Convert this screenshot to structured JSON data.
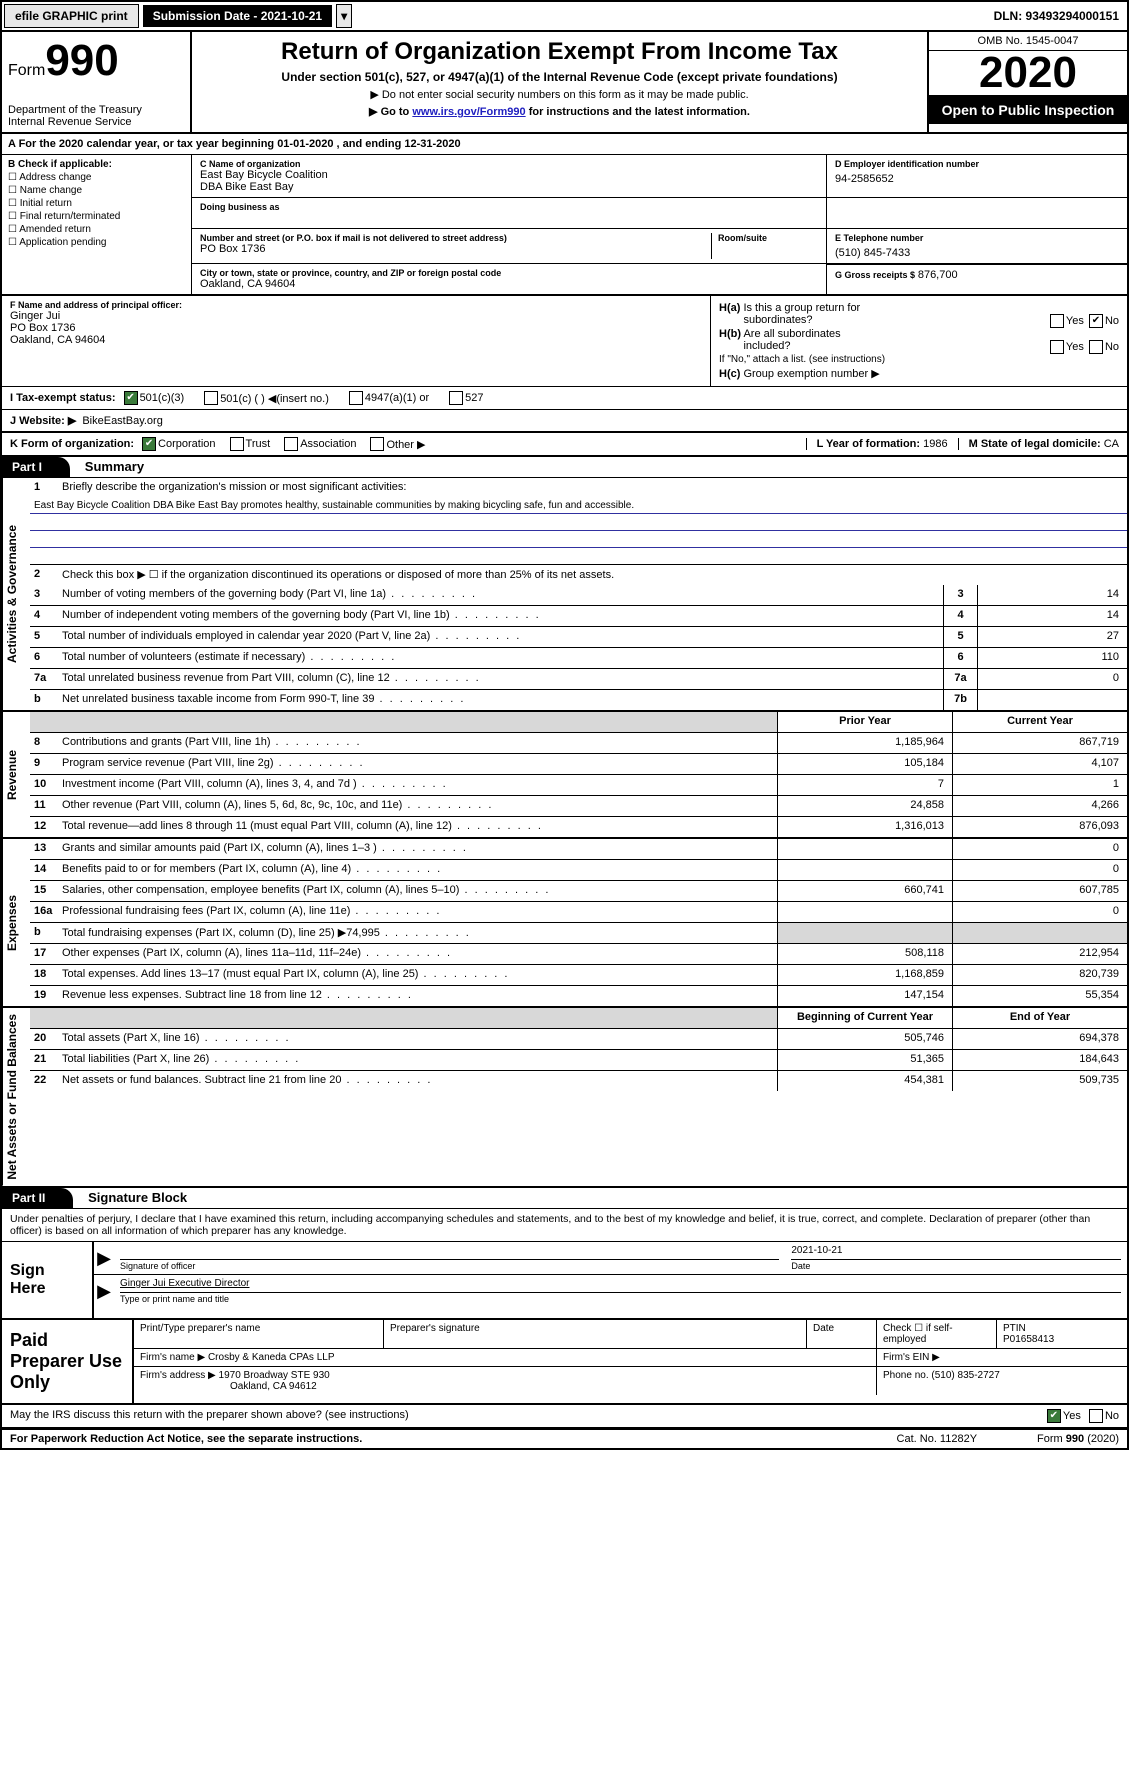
{
  "topbar": {
    "efile": "efile GRAPHIC print",
    "submission_label": "Submission Date - 2021-10-21",
    "dln": "DLN: 93493294000151"
  },
  "header": {
    "form_label": "Form",
    "form_number": "990",
    "dept": "Department of the Treasury\nInternal Revenue Service",
    "title": "Return of Organization Exempt From Income Tax",
    "subtitle": "Under section 501(c), 527, or 4947(a)(1) of the Internal Revenue Code (except private foundations)",
    "note1": "▶ Do not enter social security numbers on this form as it may be made public.",
    "note2_pre": "▶ Go to ",
    "note2_link": "www.irs.gov/Form990",
    "note2_post": " for instructions and the latest information.",
    "omb": "OMB No. 1545-0047",
    "year": "2020",
    "open_public": "Open to Public Inspection"
  },
  "row_a": "A For the 2020 calendar year, or tax year beginning 01-01-2020   , and ending 12-31-2020",
  "section_b": {
    "header": "B Check if applicable:",
    "items": [
      "Address change",
      "Name change",
      "Initial return",
      "Final return/terminated",
      "Amended return",
      "Application pending"
    ]
  },
  "section_c": {
    "name_label": "C Name of organization",
    "name": "East Bay Bicycle Coalition",
    "dba": "DBA Bike East Bay",
    "dba_label": "Doing business as",
    "street_label": "Number and street (or P.O. box if mail is not delivered to street address)",
    "room_label": "Room/suite",
    "street": "PO Box 1736",
    "city_label": "City or town, state or province, country, and ZIP or foreign postal code",
    "city": "Oakland, CA  94604"
  },
  "section_d": {
    "label": "D Employer identification number",
    "value": "94-2585652"
  },
  "section_e": {
    "label": "E Telephone number",
    "value": "(510) 845-7433"
  },
  "section_g": {
    "label": "G Gross receipts $",
    "value": "876,700"
  },
  "section_f": {
    "label": "F  Name and address of principal officer:",
    "name": "Ginger Jui",
    "addr1": "PO Box 1736",
    "addr2": "Oakland, CA  94604"
  },
  "section_h": {
    "ha": "H(a)  Is this a group return for subordinates?",
    "hb": "H(b)  Are all subordinates included?",
    "hb_note": "If \"No,\" attach a list. (see instructions)",
    "hc": "H(c)  Group exemption number ▶"
  },
  "section_i": {
    "label": "I  Tax-exempt status:",
    "opts": [
      "501(c)(3)",
      "501(c) (  ) ◀(insert no.)",
      "4947(a)(1) or",
      "527"
    ]
  },
  "section_j": {
    "label": "J  Website: ▶",
    "value": "BikeEastBay.org"
  },
  "section_k": {
    "label": "K Form of organization:",
    "opts": [
      "Corporation",
      "Trust",
      "Association",
      "Other ▶"
    ]
  },
  "section_l": {
    "label": "L Year of formation:",
    "value": "1986"
  },
  "section_m": {
    "label": "M State of legal domicile:",
    "value": "CA"
  },
  "part1": {
    "header": "Part I",
    "title": "Summary",
    "line1_label": "Briefly describe the organization's mission or most significant activities:",
    "mission": "East Bay Bicycle Coalition DBA Bike East Bay promotes healthy, sustainable communities by making bicycling safe, fun and accessible.",
    "line2": "Check this box ▶ ☐  if the organization discontinued its operations or disposed of more than 25% of its net assets.",
    "governance_label": "Activities & Governance",
    "revenue_label": "Revenue",
    "expenses_label": "Expenses",
    "netassets_label": "Net Assets or Fund Balances",
    "lines_gov": [
      {
        "n": "3",
        "d": "Number of voting members of the governing body (Part VI, line 1a)",
        "bn": "3",
        "v": "14"
      },
      {
        "n": "4",
        "d": "Number of independent voting members of the governing body (Part VI, line 1b)",
        "bn": "4",
        "v": "14"
      },
      {
        "n": "5",
        "d": "Total number of individuals employed in calendar year 2020 (Part V, line 2a)",
        "bn": "5",
        "v": "27"
      },
      {
        "n": "6",
        "d": "Total number of volunteers (estimate if necessary)",
        "bn": "6",
        "v": "110"
      },
      {
        "n": "7a",
        "d": "Total unrelated business revenue from Part VIII, column (C), line 12",
        "bn": "7a",
        "v": "0"
      },
      {
        "n": "b",
        "d": "Net unrelated business taxable income from Form 990-T, line 39",
        "bn": "7b",
        "v": ""
      }
    ],
    "col_prior": "Prior Year",
    "col_current": "Current Year",
    "lines_rev": [
      {
        "n": "8",
        "d": "Contributions and grants (Part VIII, line 1h)",
        "p": "1,185,964",
        "c": "867,719"
      },
      {
        "n": "9",
        "d": "Program service revenue (Part VIII, line 2g)",
        "p": "105,184",
        "c": "4,107"
      },
      {
        "n": "10",
        "d": "Investment income (Part VIII, column (A), lines 3, 4, and 7d )",
        "p": "7",
        "c": "1"
      },
      {
        "n": "11",
        "d": "Other revenue (Part VIII, column (A), lines 5, 6d, 8c, 9c, 10c, and 11e)",
        "p": "24,858",
        "c": "4,266"
      },
      {
        "n": "12",
        "d": "Total revenue—add lines 8 through 11 (must equal Part VIII, column (A), line 12)",
        "p": "1,316,013",
        "c": "876,093"
      }
    ],
    "lines_exp": [
      {
        "n": "13",
        "d": "Grants and similar amounts paid (Part IX, column (A), lines 1–3 )",
        "p": "",
        "c": "0"
      },
      {
        "n": "14",
        "d": "Benefits paid to or for members (Part IX, column (A), line 4)",
        "p": "",
        "c": "0"
      },
      {
        "n": "15",
        "d": "Salaries, other compensation, employee benefits (Part IX, column (A), lines 5–10)",
        "p": "660,741",
        "c": "607,785"
      },
      {
        "n": "16a",
        "d": "Professional fundraising fees (Part IX, column (A), line 11e)",
        "p": "",
        "c": "0"
      },
      {
        "n": "b",
        "d": "Total fundraising expenses (Part IX, column (D), line 25) ▶74,995",
        "p": "shade",
        "c": "shade"
      },
      {
        "n": "17",
        "d": "Other expenses (Part IX, column (A), lines 11a–11d, 11f–24e)",
        "p": "508,118",
        "c": "212,954"
      },
      {
        "n": "18",
        "d": "Total expenses. Add lines 13–17 (must equal Part IX, column (A), line 25)",
        "p": "1,168,859",
        "c": "820,739"
      },
      {
        "n": "19",
        "d": "Revenue less expenses. Subtract line 18 from line 12",
        "p": "147,154",
        "c": "55,354"
      }
    ],
    "col_begin": "Beginning of Current Year",
    "col_end": "End of Year",
    "lines_net": [
      {
        "n": "20",
        "d": "Total assets (Part X, line 16)",
        "p": "505,746",
        "c": "694,378"
      },
      {
        "n": "21",
        "d": "Total liabilities (Part X, line 26)",
        "p": "51,365",
        "c": "184,643"
      },
      {
        "n": "22",
        "d": "Net assets or fund balances. Subtract line 21 from line 20",
        "p": "454,381",
        "c": "509,735"
      }
    ]
  },
  "part2": {
    "header": "Part II",
    "title": "Signature Block",
    "perjury": "Under penalties of perjury, I declare that I have examined this return, including accompanying schedules and statements, and to the best of my knowledge and belief, it is true, correct, and complete. Declaration of preparer (other than officer) is based on all information of which preparer has any knowledge.",
    "sign_here": "Sign Here",
    "sig_officer": "Signature of officer",
    "date_label": "Date",
    "date_value": "2021-10-21",
    "officer_name": "Ginger Jui  Executive Director",
    "type_name": "Type or print name and title",
    "paid_prep": "Paid Preparer Use Only",
    "prep_name_label": "Print/Type preparer's name",
    "prep_sig_label": "Preparer's signature",
    "prep_date_label": "Date",
    "check_self": "Check ☐ if self-employed",
    "ptin_label": "PTIN",
    "ptin": "P01658413",
    "firm_name_label": "Firm's name   ▶",
    "firm_name": "Crosby & Kaneda CPAs LLP",
    "firm_ein_label": "Firm's EIN ▶",
    "firm_addr_label": "Firm's address ▶",
    "firm_addr1": "1970 Broadway STE 930",
    "firm_addr2": "Oakland, CA  94612",
    "phone_label": "Phone no.",
    "phone": "(510) 835-2727",
    "may_irs": "May the IRS discuss this return with the preparer shown above? (see instructions)"
  },
  "footer": {
    "pra": "For Paperwork Reduction Act Notice, see the separate instructions.",
    "cat": "Cat. No. 11282Y",
    "form": "Form 990 (2020)"
  }
}
